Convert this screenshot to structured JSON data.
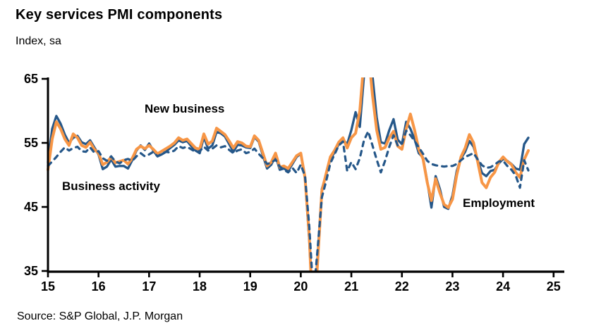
{
  "title": "Key services PMI components",
  "subtitle": "Index, sa",
  "source": "Source: S&P Global, J.P. Morgan",
  "colors": {
    "navy": "#255789",
    "orange": "#F79646",
    "axis": "#000000",
    "text": "#000000",
    "background": "#FFFFFF"
  },
  "chart_data": {
    "type": "line",
    "frequency": "monthly",
    "x_start": "2015-01",
    "x_end": "2024-07",
    "title": "Key services PMI components",
    "xlabel": "",
    "ylabel": "Index, sa",
    "ylim": [
      35,
      65
    ],
    "yticks": [
      65,
      55,
      45,
      35
    ],
    "xticks": [
      "15",
      "16",
      "17",
      "18",
      "19",
      "20",
      "21",
      "22",
      "23",
      "24",
      "25"
    ],
    "grid": false,
    "legend_position": "on-chart-labels",
    "clipped_above": 65,
    "clipped_below": 35,
    "series": [
      {
        "name": "Business activity",
        "style": "solid",
        "color": "#255789",
        "values": [
          52.0,
          57.2,
          59.2,
          58.0,
          56.3,
          55.0,
          55.8,
          56.1,
          55.1,
          54.8,
          55.4,
          54.3,
          53.2,
          50.9,
          51.3,
          52.4,
          51.3,
          51.4,
          51.4,
          51.0,
          52.3,
          53.8,
          54.6,
          53.9,
          54.9,
          53.8,
          52.9,
          53.2,
          53.6,
          54.2,
          54.7,
          55.4,
          55.1,
          55.3,
          54.5,
          53.8,
          53.4,
          55.9,
          54.1,
          54.6,
          56.7,
          56.5,
          56.0,
          54.8,
          53.6,
          54.7,
          54.6,
          54.3,
          54.2,
          55.9,
          55.2,
          53.0,
          51.0,
          51.6,
          53.0,
          50.8,
          51.0,
          50.6,
          51.7,
          52.8,
          53.3,
          49.4,
          39.8,
          26.7,
          37.5,
          47.8,
          50.0,
          52.5,
          53.5,
          54.8,
          55.5,
          54.8,
          57.0,
          59.8,
          57.5,
          65.5,
          70.4,
          65.5,
          59.0,
          55.1,
          54.9,
          57.0,
          58.7,
          55.5,
          54.8,
          58.3,
          57.2,
          55.6,
          53.4,
          52.7,
          49.0,
          44.9,
          49.8,
          47.8,
          45.0,
          44.7,
          46.8,
          50.6,
          52.6,
          53.6,
          55.3,
          54.4,
          52.3,
          50.3,
          49.8,
          50.6,
          50.8,
          51.8,
          52.5,
          52.2,
          51.7,
          51.0,
          50.8,
          54.8,
          55.8
        ]
      },
      {
        "name": "New business",
        "style": "solid",
        "color": "#F79646",
        "values": [
          50.8,
          55.6,
          58.3,
          57.2,
          55.6,
          54.6,
          56.4,
          55.8,
          54.6,
          54.3,
          55.1,
          54.0,
          53.4,
          51.6,
          52.0,
          52.8,
          51.9,
          52.1,
          52.3,
          51.7,
          52.6,
          54.0,
          54.5,
          54.1,
          54.6,
          54.0,
          53.3,
          53.7,
          54.1,
          54.5,
          55.0,
          55.8,
          55.4,
          55.6,
          54.9,
          54.2,
          54.0,
          56.4,
          54.8,
          55.3,
          57.3,
          56.8,
          56.3,
          55.3,
          54.2,
          55.2,
          55.0,
          54.5,
          54.4,
          56.1,
          55.4,
          53.4,
          51.4,
          52.0,
          53.4,
          51.2,
          51.4,
          51.0,
          52.0,
          53.0,
          53.4,
          49.6,
          40.5,
          25.5,
          36.5,
          47.5,
          50.2,
          52.8,
          53.8,
          55.1,
          55.8,
          54.2,
          55.8,
          56.5,
          60.0,
          68.0,
          69.5,
          62.5,
          57.0,
          54.0,
          54.3,
          55.8,
          56.8,
          54.5,
          54.0,
          57.2,
          59.5,
          57.0,
          54.0,
          52.5,
          48.8,
          46.0,
          49.4,
          47.2,
          45.4,
          44.9,
          46.2,
          50.0,
          52.8,
          54.2,
          56.3,
          55.0,
          52.0,
          48.8,
          48.0,
          49.6,
          50.4,
          52.0,
          52.8,
          52.1,
          51.6,
          50.4,
          49.6,
          52.4,
          53.8
        ]
      },
      {
        "name": "Employment",
        "style": "dashed",
        "color": "#255789",
        "values": [
          51.4,
          52.1,
          52.8,
          53.6,
          54.3,
          53.8,
          54.2,
          54.4,
          53.7,
          53.6,
          54.3,
          53.5,
          53.7,
          52.6,
          52.2,
          52.9,
          52.1,
          51.8,
          52.3,
          52.5,
          52.2,
          52.9,
          53.4,
          52.9,
          53.2,
          53.6,
          52.9,
          53.3,
          53.6,
          53.5,
          53.8,
          54.5,
          54.2,
          54.4,
          54.0,
          53.6,
          53.7,
          54.4,
          53.8,
          54.1,
          54.6,
          54.3,
          54.5,
          53.9,
          53.4,
          53.8,
          54.0,
          53.4,
          53.6,
          54.1,
          53.3,
          52.6,
          51.7,
          51.9,
          52.4,
          51.3,
          50.8,
          50.4,
          51.1,
          50.3,
          51.6,
          49.8,
          42.0,
          31.0,
          38.5,
          46.5,
          49.0,
          51.8,
          53.2,
          54.6,
          55.2,
          50.6,
          52.0,
          50.9,
          52.6,
          55.4,
          56.8,
          54.6,
          52.4,
          50.4,
          52.2,
          54.4,
          56.2,
          54.6,
          54.8,
          56.9,
          56.2,
          55.3,
          54.3,
          53.3,
          52.2,
          51.7,
          51.5,
          51.4,
          51.3,
          51.4,
          51.4,
          51.7,
          52.3,
          52.8,
          53.1,
          53.4,
          52.4,
          51.5,
          51.1,
          51.2,
          51.6,
          52.1,
          52.2,
          51.4,
          50.8,
          49.9,
          48.0,
          52.3,
          50.7
        ]
      }
    ]
  }
}
